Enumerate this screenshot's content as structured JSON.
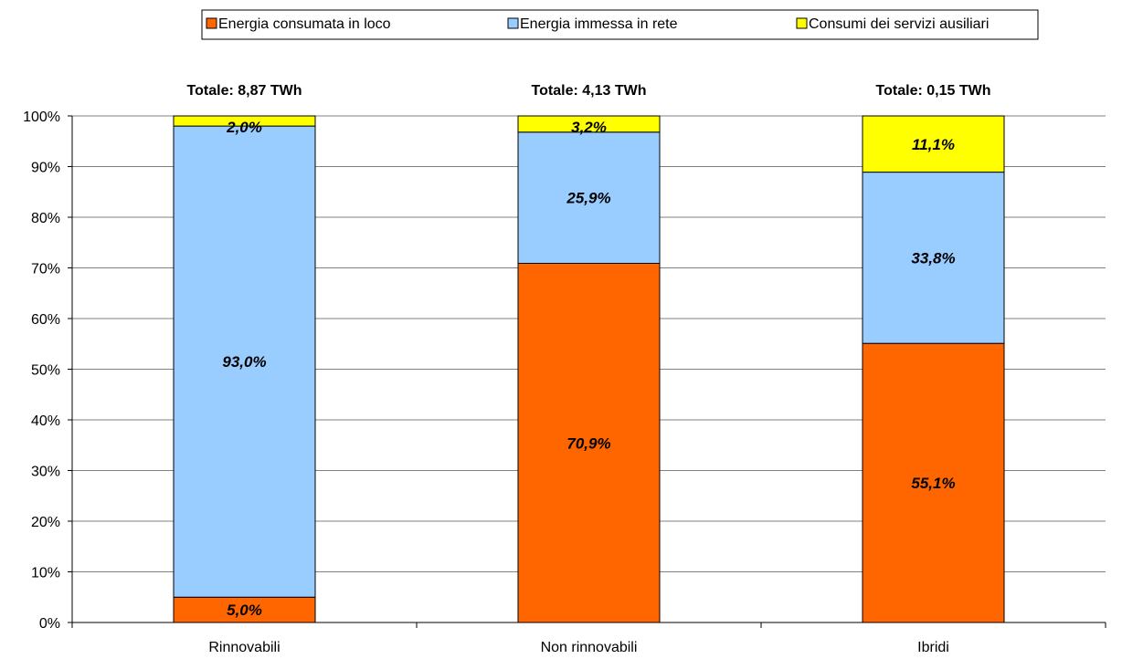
{
  "chart_data": {
    "type": "bar",
    "stacked": true,
    "categories": [
      "Rinnovabili",
      "Non rinnovabili",
      "Ibridi"
    ],
    "category_totals": [
      "Totale: 8,87 TWh",
      "Totale: 4,13 TWh",
      "Totale: 0,15 TWh"
    ],
    "series": [
      {
        "name": "Energia consumata in loco",
        "color": "#FF6600",
        "values": [
          5.0,
          70.9,
          55.1
        ],
        "labels": [
          "5,0%",
          "70,9%",
          "55,1%"
        ]
      },
      {
        "name": "Energia immessa in rete",
        "color": "#99CCFF",
        "values": [
          93.0,
          25.9,
          33.8
        ],
        "labels": [
          "93,0%",
          "25,9%",
          "33,8%"
        ]
      },
      {
        "name": "Consumi dei servizi ausiliari",
        "color": "#FFFF00",
        "values": [
          2.0,
          3.2,
          11.1
        ],
        "labels": [
          "2,0%",
          "3,2%",
          "11,1%"
        ]
      }
    ],
    "ylim": [
      0,
      100
    ],
    "y_ticks": [
      "0%",
      "10%",
      "20%",
      "30%",
      "40%",
      "50%",
      "60%",
      "70%",
      "80%",
      "90%",
      "100%"
    ],
    "grid": true,
    "legend_position": "top"
  }
}
